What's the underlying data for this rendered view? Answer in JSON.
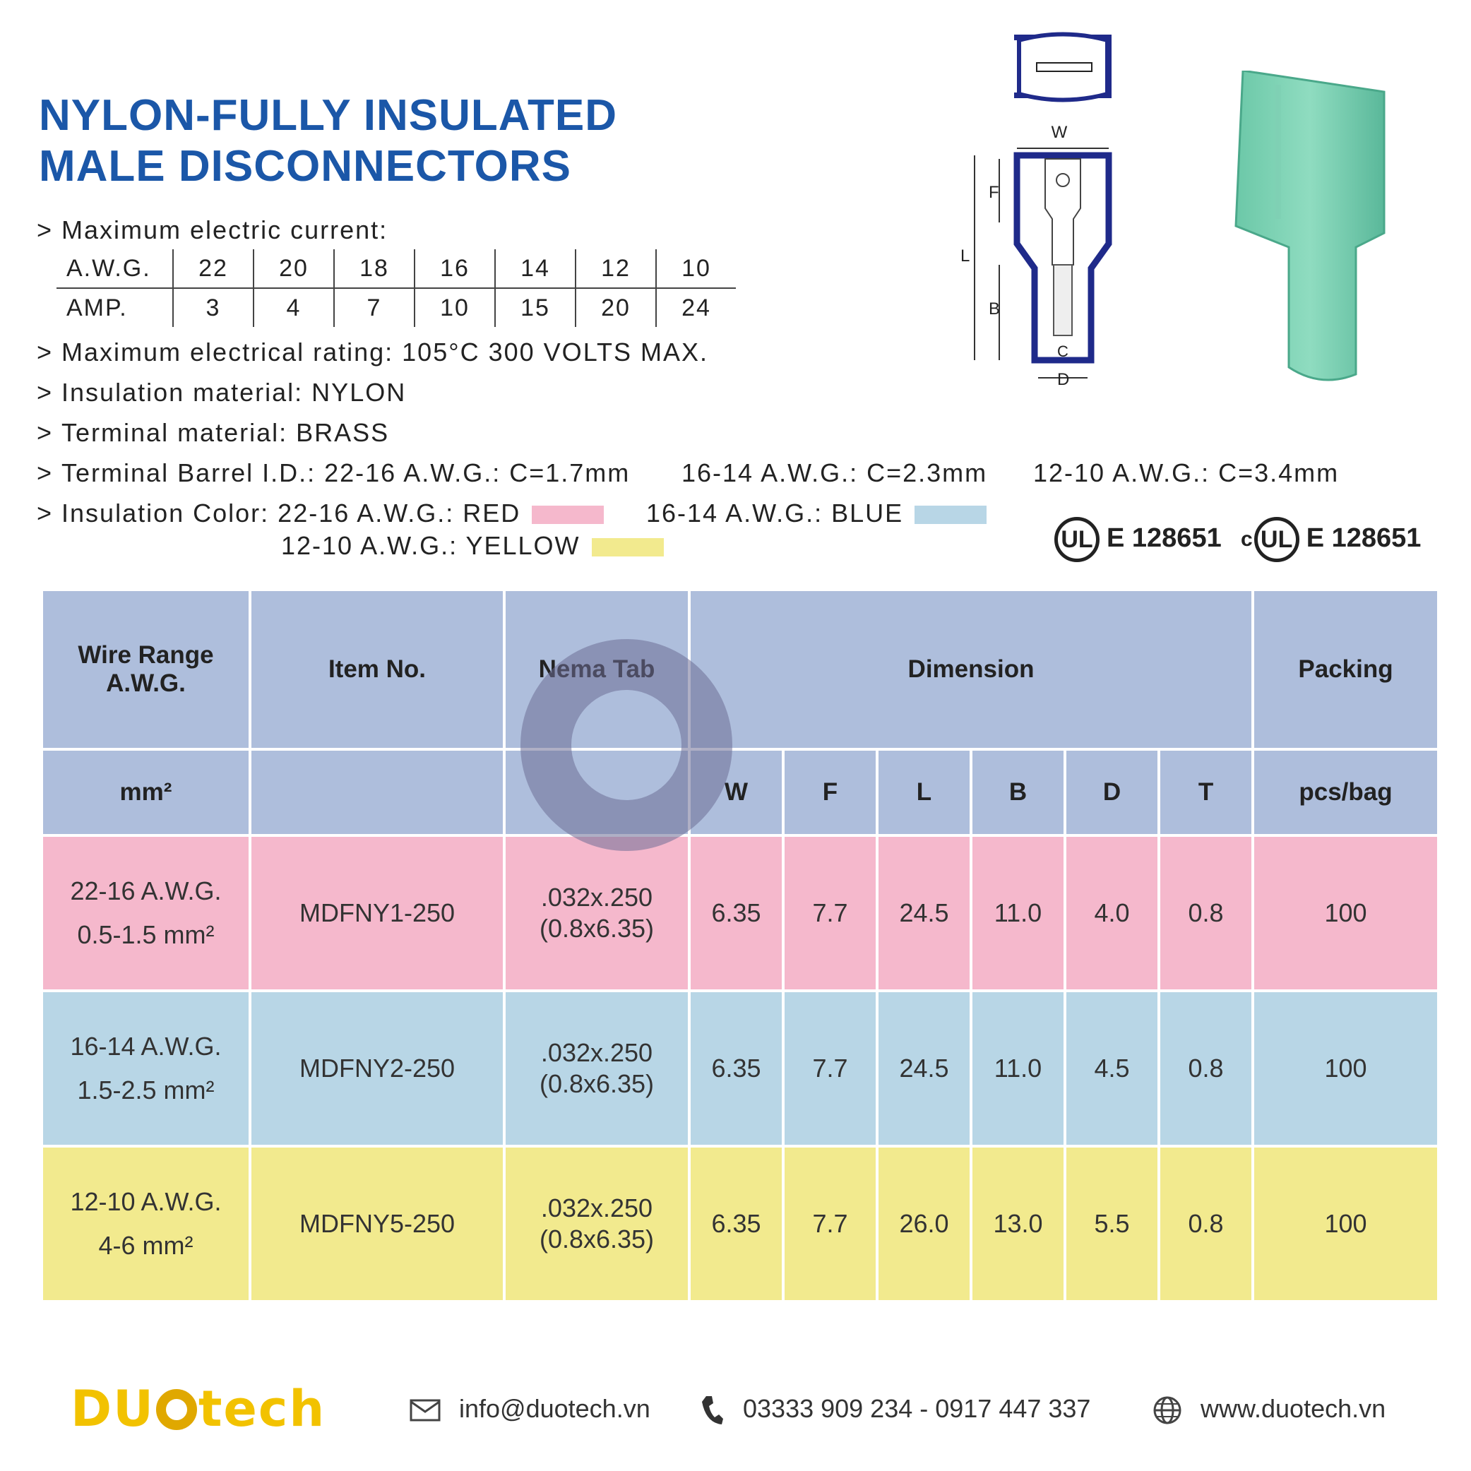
{
  "title": {
    "line1": "NYLON-FULLY INSULATED",
    "line2": "MALE DISCONNECTORS"
  },
  "specs": {
    "arrow": ">",
    "max_current_label": "Maximum electric current:",
    "awg_label": "A.W.G.",
    "amp_label": "AMP.",
    "awg_values": [
      "22",
      "20",
      "18",
      "16",
      "14",
      "12",
      "10"
    ],
    "amp_values": [
      "3",
      "4",
      "7",
      "10",
      "15",
      "20",
      "24"
    ],
    "rating": "Maximum electrical rating: 105°C 300 VOLTS MAX.",
    "insulation_material": "Insulation material: NYLON",
    "terminal_material": "Terminal material: BRASS",
    "barrel_id": "Terminal Barrel I.D.: 22-16 A.W.G.: C=1.7mm",
    "barrel_id_2": "16-14 A.W.G.: C=2.3mm",
    "barrel_id_3": "12-10 A.W.G.: C=3.4mm",
    "color_label": "Insulation Color: 22-16 A.W.G.: RED",
    "color_blue": "16-14 A.W.G.: BLUE",
    "color_yellow": "12-10 A.W.G.: YELLOW",
    "colors": {
      "red": "#f5b8cc",
      "blue": "#b8d6e6",
      "yellow": "#f2ea8e"
    }
  },
  "drawing_labels": {
    "w": "W",
    "f": "F",
    "l": "L",
    "b": "B",
    "c": "C",
    "d": "D"
  },
  "certification": {
    "ul_mark": "UL",
    "c_prefix": "c",
    "number1": "E 128651",
    "number2": "E 128651"
  },
  "table": {
    "headers": {
      "wire_range": "Wire Range",
      "awg": "A.W.G.",
      "item_no": "Item No.",
      "nema_tab": "Nema Tab",
      "dimension": "Dimension",
      "packing": "Packing",
      "mm2": "mm²",
      "w": "W",
      "f": "F",
      "l": "L",
      "b": "B",
      "d": "D",
      "t": "T",
      "pcs_bag": "pcs/bag"
    },
    "rows": [
      {
        "awg": "22-16 A.W.G.",
        "mm2": "0.5-1.5 mm²",
        "item": "MDFNY1-250",
        "nema1": ".032x.250",
        "nema2": "(0.8x6.35)",
        "w": "6.35",
        "f": "7.7",
        "l": "24.5",
        "b": "11.0",
        "d": "4.0",
        "t": "0.8",
        "pack": "100"
      },
      {
        "awg": "16-14 A.W.G.",
        "mm2": "1.5-2.5 mm²",
        "item": "MDFNY2-250",
        "nema1": ".032x.250",
        "nema2": "(0.8x6.35)",
        "w": "6.35",
        "f": "7.7",
        "l": "24.5",
        "b": "11.0",
        "d": "4.5",
        "t": "0.8",
        "pack": "100"
      },
      {
        "awg": "12-10 A.W.G.",
        "mm2": "4-6 mm²",
        "item": "MDFNY5-250",
        "nema1": ".032x.250",
        "nema2": "(0.8x6.35)",
        "w": "6.35",
        "f": "7.7",
        "l": "26.0",
        "b": "13.0",
        "d": "5.5",
        "t": "0.8",
        "pack": "100"
      }
    ]
  },
  "watermark": "DUOtech",
  "footer": {
    "logo_left": "DU",
    "logo_right": "tech",
    "email": "info@duotech.vn",
    "phone": "03333 909 234  -  0917 447 337",
    "website": "www.duotech.vn"
  }
}
